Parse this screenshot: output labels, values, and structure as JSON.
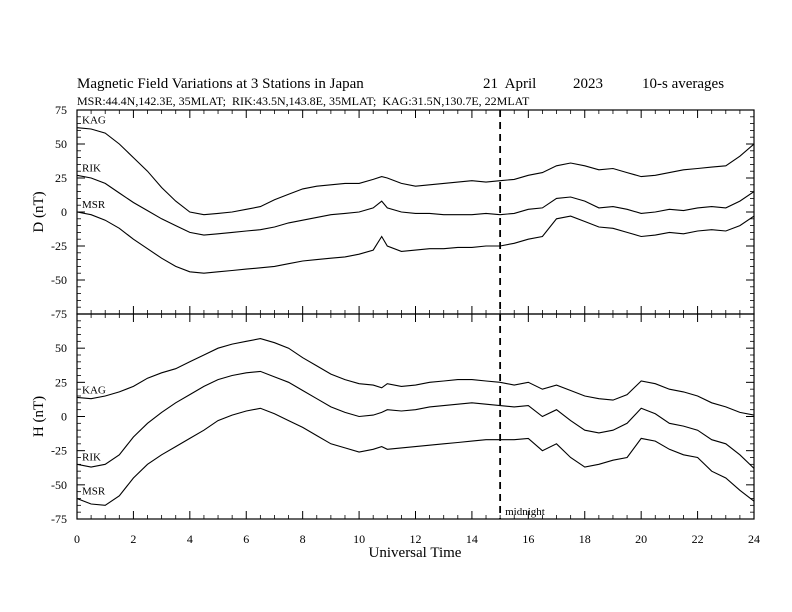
{
  "chart_data": {
    "type": "line",
    "title": "Magnetic Field Variations at 3 Stations in Japan",
    "date": "21  April",
    "year": "2023",
    "averaging": "10-s averages",
    "subtitle": "MSR:44.4N,142.3E, 35MLAT;  RIK:43.5N,143.8E, 35MLAT;  KAG:31.5N,130.7E, 22MLAT",
    "xlabel": "Universal Time",
    "xlim": [
      0,
      24
    ],
    "x_ticks": [
      "0",
      "2",
      "4",
      "6",
      "8",
      "10",
      "12",
      "14",
      "16",
      "18",
      "20",
      "22",
      "24"
    ],
    "grid": false,
    "annotations": [
      {
        "label": "midnight",
        "x": 15,
        "style": "dashed vertical line"
      }
    ],
    "panels": [
      {
        "ylabel": "D (nT)",
        "ylim": [
          -75,
          75
        ],
        "y_ticks": [
          "75",
          "50",
          "25",
          "0",
          "-25",
          "-50",
          "-75"
        ],
        "x": [
          0,
          0.5,
          1,
          1.5,
          2,
          2.5,
          3,
          3.5,
          4,
          4.5,
          5,
          5.5,
          6,
          6.5,
          7,
          7.5,
          8,
          8.5,
          9,
          9.5,
          10,
          10.5,
          10.8,
          11,
          11.5,
          12,
          12.5,
          13,
          13.5,
          14,
          14.5,
          15,
          15.5,
          16,
          16.5,
          17,
          17.5,
          18,
          18.5,
          19,
          19.5,
          20,
          20.5,
          21,
          21.5,
          22,
          22.5,
          23,
          23.5,
          24
        ],
        "series": [
          {
            "name": "KAG",
            "values": [
              62,
              61,
              58,
              50,
              40,
              30,
              18,
              8,
              0,
              -2,
              -1,
              0,
              2,
              4,
              9,
              13,
              17,
              19,
              20,
              21,
              21,
              24,
              26,
              25,
              21,
              19,
              20,
              21,
              22,
              23,
              22,
              23,
              24,
              27,
              29,
              34,
              36,
              34,
              31,
              32,
              29,
              26,
              27,
              29,
              31,
              32,
              33,
              34,
              41,
              50
            ]
          },
          {
            "name": "RIK",
            "values": [
              27,
              25,
              21,
              14,
              7,
              1,
              -5,
              -10,
              -15,
              -17,
              -16,
              -15,
              -14,
              -13,
              -11,
              -8,
              -6,
              -4,
              -2,
              -1,
              0,
              3,
              8,
              3,
              0,
              -1,
              -1,
              -2,
              -2,
              -2,
              -1,
              -2,
              -1,
              2,
              3,
              10,
              11,
              8,
              3,
              4,
              2,
              -1,
              0,
              2,
              1,
              3,
              4,
              3,
              8,
              15
            ]
          },
          {
            "name": "MSR",
            "values": [
              0,
              -2,
              -6,
              -12,
              -20,
              -27,
              -34,
              -40,
              -44,
              -45,
              -44,
              -43,
              -42,
              -41,
              -40,
              -38,
              -36,
              -35,
              -34,
              -33,
              -31,
              -28,
              -18,
              -25,
              -29,
              -28,
              -27,
              -27,
              -26,
              -26,
              -25,
              -25,
              -23,
              -20,
              -18,
              -5,
              -3,
              -7,
              -11,
              -12,
              -15,
              -18,
              -17,
              -15,
              -16,
              -14,
              -13,
              -14,
              -10,
              -3
            ]
          }
        ]
      },
      {
        "ylabel": "H (nT)",
        "ylim": [
          -75,
          75
        ],
        "y_ticks": [
          "75",
          "50",
          "25",
          "0",
          "-25",
          "-50",
          "-75"
        ],
        "x": [
          0,
          0.5,
          1,
          1.5,
          2,
          2.5,
          3,
          3.5,
          4,
          4.5,
          5,
          5.5,
          6,
          6.5,
          7,
          7.5,
          8,
          8.5,
          9,
          9.5,
          10,
          10.5,
          10.8,
          11,
          11.5,
          12,
          12.5,
          13,
          13.5,
          14,
          14.5,
          15,
          15.5,
          16,
          16.5,
          17,
          17.5,
          18,
          18.5,
          19,
          19.5,
          20,
          20.5,
          21,
          21.5,
          22,
          22.5,
          23,
          23.5,
          24
        ],
        "series": [
          {
            "name": "KAG",
            "values": [
              14,
              13,
              15,
              18,
              22,
              28,
              32,
              35,
              40,
              45,
              50,
              53,
              55,
              57,
              54,
              50,
              43,
              37,
              31,
              27,
              24,
              23,
              21,
              24,
              22,
              23,
              25,
              26,
              27,
              27,
              26,
              25,
              23,
              25,
              20,
              23,
              19,
              15,
              13,
              12,
              16,
              26,
              24,
              20,
              18,
              15,
              10,
              7,
              3,
              1
            ]
          },
          {
            "name": "RIK",
            "values": [
              -35,
              -37,
              -35,
              -28,
              -15,
              -5,
              3,
              10,
              16,
              22,
              27,
              30,
              32,
              33,
              29,
              25,
              19,
              13,
              7,
              3,
              0,
              1,
              3,
              5,
              4,
              5,
              7,
              8,
              9,
              10,
              9,
              8,
              7,
              8,
              0,
              5,
              -3,
              -10,
              -12,
              -10,
              -5,
              6,
              2,
              -5,
              -7,
              -10,
              -17,
              -20,
              -28,
              -38
            ]
          },
          {
            "name": "MSR",
            "values": [
              -60,
              -64,
              -65,
              -58,
              -45,
              -35,
              -28,
              -22,
              -16,
              -10,
              -3,
              1,
              4,
              6,
              2,
              -3,
              -8,
              -14,
              -20,
              -23,
              -26,
              -24,
              -22,
              -24,
              -23,
              -22,
              -21,
              -20,
              -19,
              -18,
              -17,
              -17,
              -17,
              -16,
              -25,
              -20,
              -30,
              -37,
              -35,
              -32,
              -30,
              -16,
              -18,
              -24,
              -28,
              -30,
              -40,
              -45,
              -54,
              -62
            ]
          }
        ]
      }
    ]
  }
}
